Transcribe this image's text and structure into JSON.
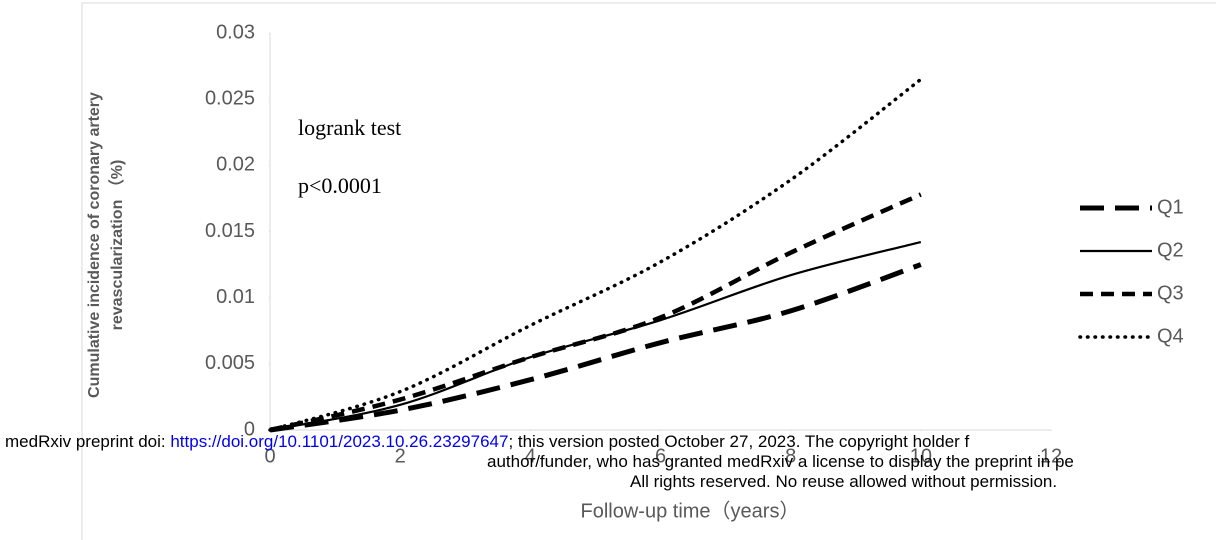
{
  "chart_data": {
    "type": "line",
    "ylabel": [
      "Cumulative incidence of  coronary artery",
      "revascularization （%)"
    ],
    "xlabel": "Follow-up time（years）",
    "annotations": [
      "logrank test",
      "p<0.0001"
    ],
    "x": [
      0,
      2,
      4,
      6,
      8,
      10
    ],
    "series": [
      {
        "name": "Q1",
        "color": "#000000",
        "dash": "long-dash",
        "values": [
          0,
          0.0015,
          0.0038,
          0.0066,
          0.009,
          0.0125
        ]
      },
      {
        "name": "Q2",
        "color": "#000000",
        "dash": "solid",
        "values": [
          0,
          0.0019,
          0.0055,
          0.0083,
          0.0117,
          0.0142
        ]
      },
      {
        "name": "Q3",
        "color": "#000000",
        "dash": "dash",
        "values": [
          0,
          0.0023,
          0.0055,
          0.0085,
          0.0134,
          0.0178
        ]
      },
      {
        "name": "Q4",
        "color": "#000000",
        "dash": "dot",
        "values": [
          0,
          0.0029,
          0.0079,
          0.0127,
          0.0189,
          0.0265
        ]
      }
    ],
    "xlim": [
      0,
      12
    ],
    "xticks": [
      0,
      2,
      4,
      6,
      8,
      10,
      12
    ],
    "ylim": [
      0,
      0.03
    ],
    "yticks": [
      0,
      0.005,
      0.01,
      0.015,
      0.02,
      0.025,
      0.03
    ],
    "legend": "right",
    "overlay": {
      "prefix": "medRxiv preprint doi: ",
      "link": "https://doi.org/10.1101/2023.10.26.23297647",
      "suffix": "; this version posted October 27, 2023. The copyright holder f",
      "line2": "author/funder, who has granted medRxiv a license to display the preprint in pe",
      "line3": "All rights reserved. No reuse allowed without permission."
    }
  }
}
